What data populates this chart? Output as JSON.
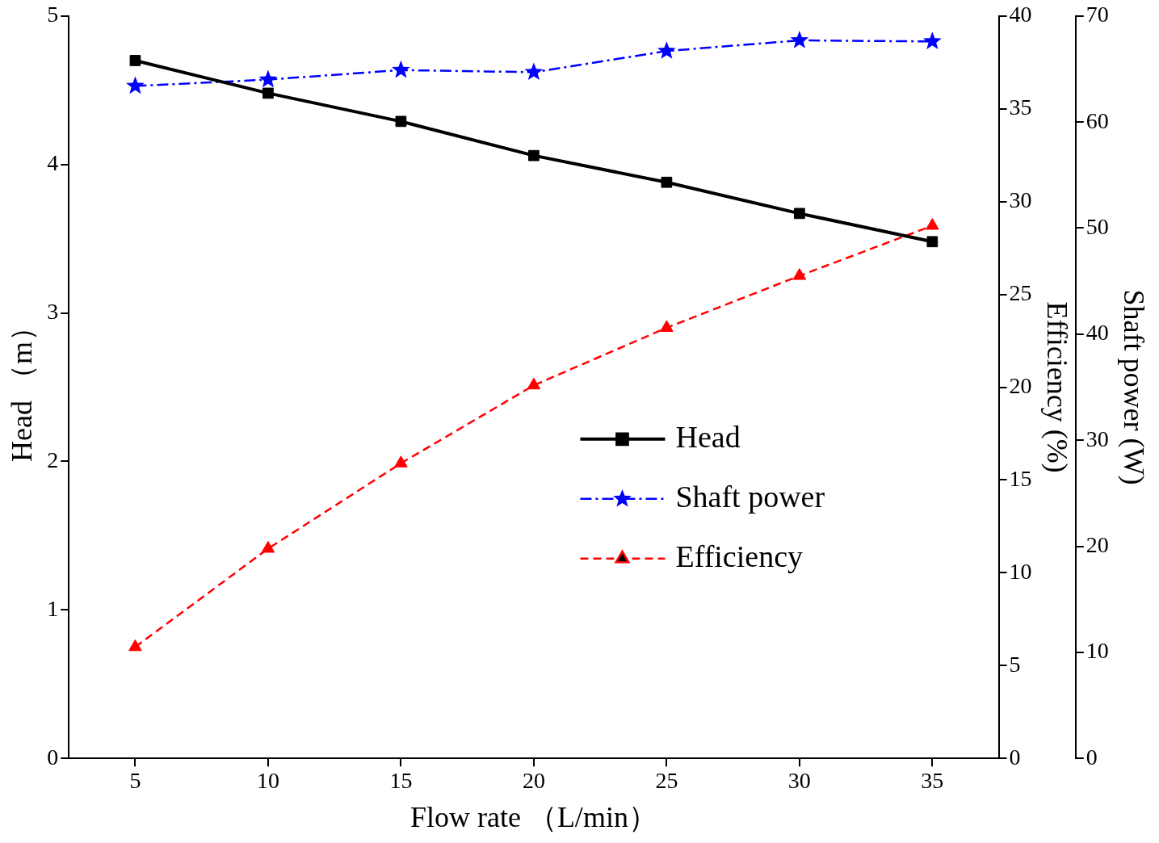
{
  "chart_data": {
    "type": "line",
    "xlabel": "Flow rate （L/min）",
    "ylabel": "Head （m）",
    "y2label": "Efficiency (%)",
    "y3label": "Shaft power (W)",
    "x": [
      5,
      10,
      15,
      20,
      25,
      30,
      35
    ],
    "xlim": [
      2.5,
      37.5
    ],
    "xticks": [
      5,
      10,
      15,
      20,
      25,
      30,
      35
    ],
    "ylim": [
      0,
      5
    ],
    "yticks": [
      0,
      1,
      2,
      3,
      4,
      5
    ],
    "y2lim": [
      0,
      40
    ],
    "y2ticks": [
      0,
      5,
      10,
      15,
      20,
      25,
      30,
      35,
      40
    ],
    "y3lim": [
      0,
      70
    ],
    "y3ticks": [
      0,
      10,
      20,
      30,
      40,
      50,
      60,
      70
    ],
    "grid": false,
    "legend": "center right",
    "series": [
      {
        "name": "Head",
        "color": "#000000",
        "marker": "square",
        "line_style": "solid",
        "values": [
          4.7,
          4.48,
          4.29,
          4.06,
          3.88,
          3.67,
          3.48
        ]
      },
      {
        "name": "Shaft power",
        "color": "#0000ff",
        "marker": "star",
        "line_style": "dashdot",
        "axis": "y3",
        "values": [
          63.4,
          64.0,
          64.9,
          64.7,
          66.7,
          67.7,
          67.6
        ]
      },
      {
        "name": "Efficiency",
        "color": "#ff0000",
        "marker": "triangle",
        "line_style": "dashed",
        "axis": "y2",
        "values": [
          6.0,
          11.3,
          15.9,
          20.1,
          23.2,
          26.0,
          28.7
        ]
      }
    ]
  }
}
